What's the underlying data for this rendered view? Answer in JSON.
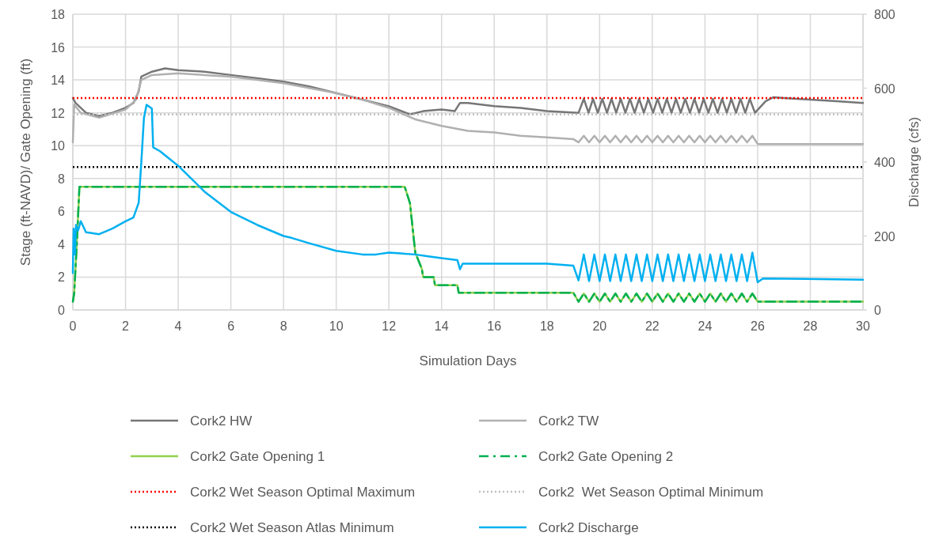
{
  "chart_data": {
    "type": "line",
    "xlabel": "Simulation Days",
    "ylabel": "Stage (ft-NAVD)/ Gate Opening (ft)",
    "y2label": "Discharge (cfs)",
    "xlim": [
      0,
      30
    ],
    "xticks": [
      0,
      2,
      4,
      6,
      8,
      10,
      12,
      14,
      16,
      18,
      20,
      22,
      24,
      26,
      28,
      30
    ],
    "ylim": [
      0,
      18
    ],
    "yticks": [
      0,
      2,
      4,
      6,
      8,
      10,
      12,
      14,
      16,
      18
    ],
    "y2lim": [
      0,
      800
    ],
    "y2ticks": [
      0,
      200,
      400,
      600,
      800
    ],
    "grid": true,
    "legend": "bottom",
    "series": [
      {
        "name": "Cork2 HW",
        "color": "#767676",
        "line_style": "solid",
        "x": [
          0,
          0.1,
          0.5,
          1,
          1.5,
          2,
          2.3,
          2.5,
          2.6,
          3,
          3.5,
          4,
          5,
          6,
          7,
          8,
          9,
          10,
          11,
          12,
          12.8,
          13.3,
          14,
          14.5,
          14.7,
          15,
          16,
          17,
          18,
          19.2,
          19.4,
          19.58,
          19.75,
          19.93,
          20.1,
          20.28,
          20.45,
          20.63,
          20.8,
          20.98,
          21.15,
          21.33,
          21.5,
          21.68,
          21.85,
          22.03,
          22.2,
          22.38,
          22.55,
          22.73,
          22.9,
          23.08,
          23.25,
          23.43,
          23.6,
          23.78,
          23.95,
          24.13,
          24.3,
          24.48,
          24.65,
          24.83,
          25.0,
          25.18,
          25.35,
          25.53,
          25.7,
          25.9,
          26.3,
          26.6,
          27,
          28,
          29,
          30
        ],
        "values": [
          12.9,
          12.6,
          12.0,
          11.8,
          12.0,
          12.3,
          12.6,
          13.3,
          14.2,
          14.5,
          14.7,
          14.6,
          14.5,
          14.3,
          14.1,
          13.9,
          13.6,
          13.2,
          12.8,
          12.4,
          11.9,
          12.1,
          12.2,
          12.1,
          12.6,
          12.6,
          12.4,
          12.3,
          12.1,
          12.0,
          12.85,
          12.0,
          12.85,
          12.0,
          12.85,
          12.0,
          12.85,
          12.0,
          12.85,
          12.0,
          12.85,
          12.0,
          12.85,
          12.0,
          12.85,
          12.0,
          12.85,
          12.0,
          12.85,
          12.0,
          12.85,
          12.0,
          12.85,
          12.0,
          12.85,
          12.0,
          12.85,
          12.0,
          12.85,
          12.0,
          12.85,
          12.0,
          12.85,
          12.0,
          12.85,
          12.0,
          12.85,
          12.0,
          12.7,
          12.95,
          12.9,
          12.8,
          12.7,
          12.6
        ]
      },
      {
        "name": "Cork2 TW",
        "color": "#b0b0b0",
        "line_style": "solid",
        "x": [
          0,
          0.05,
          0.3,
          1,
          2,
          2.4,
          2.6,
          3,
          4,
          5,
          6,
          7,
          8,
          9,
          10,
          11,
          12,
          13,
          14,
          15,
          16,
          17,
          18,
          19,
          19.2,
          19.4,
          19.6,
          19.8,
          20.0,
          20.2,
          20.4,
          20.6,
          20.8,
          21.0,
          21.2,
          21.4,
          21.6,
          21.8,
          22.0,
          22.2,
          22.4,
          22.6,
          22.8,
          23.0,
          23.2,
          23.4,
          23.6,
          23.8,
          24.0,
          24.2,
          24.4,
          24.6,
          24.8,
          25.0,
          25.2,
          25.4,
          25.6,
          25.8,
          26.0,
          30
        ],
        "values": [
          10.2,
          12.5,
          12.0,
          11.7,
          12.2,
          12.8,
          14.0,
          14.3,
          14.4,
          14.3,
          14.2,
          14.0,
          13.8,
          13.5,
          13.2,
          12.8,
          12.3,
          11.6,
          11.2,
          10.9,
          10.8,
          10.6,
          10.5,
          10.4,
          10.2,
          10.6,
          10.2,
          10.6,
          10.2,
          10.6,
          10.2,
          10.6,
          10.2,
          10.6,
          10.2,
          10.6,
          10.2,
          10.6,
          10.2,
          10.6,
          10.2,
          10.6,
          10.2,
          10.6,
          10.2,
          10.6,
          10.2,
          10.6,
          10.2,
          10.6,
          10.2,
          10.6,
          10.2,
          10.6,
          10.2,
          10.6,
          10.2,
          10.6,
          10.1,
          10.1
        ]
      },
      {
        "name": "Cork2 Gate Opening 1",
        "color": "#92d050",
        "line_style": "solid",
        "x": [
          0,
          0.05,
          0.15,
          0.25,
          12.6,
          12.8,
          13.0,
          13.25,
          13.3,
          13.7,
          13.75,
          14.6,
          14.65,
          19.0,
          19.2,
          19.4,
          19.6,
          19.8,
          20.0,
          20.2,
          20.4,
          20.6,
          20.8,
          21.0,
          21.2,
          21.4,
          21.6,
          21.8,
          22.0,
          22.2,
          22.4,
          22.6,
          22.8,
          23.0,
          23.2,
          23.4,
          23.6,
          23.8,
          24.0,
          24.2,
          24.4,
          24.6,
          24.8,
          25.0,
          25.2,
          25.4,
          25.6,
          25.8,
          26.0,
          30
        ],
        "values": [
          0.5,
          1.0,
          4.0,
          7.5,
          7.5,
          6.5,
          3.5,
          2.5,
          2.0,
          2.0,
          1.5,
          1.5,
          1.05,
          1.05,
          0.5,
          1.0,
          0.5,
          1.0,
          0.5,
          1.0,
          0.5,
          1.0,
          0.5,
          1.0,
          0.5,
          1.0,
          0.5,
          1.0,
          0.5,
          1.0,
          0.5,
          1.0,
          0.5,
          1.0,
          0.5,
          1.0,
          0.5,
          1.0,
          0.5,
          1.0,
          0.5,
          1.0,
          0.5,
          1.0,
          0.5,
          1.0,
          0.5,
          1.0,
          0.5,
          0.5
        ]
      },
      {
        "name": "Cork2 Gate Opening 2",
        "color": "#00b050",
        "line_style": "dashed",
        "x": [
          0,
          0.05,
          0.15,
          0.25,
          12.6,
          12.8,
          13.0,
          13.25,
          13.3,
          13.7,
          13.75,
          14.6,
          14.65,
          19.0,
          19.2,
          19.4,
          19.6,
          19.8,
          20.0,
          20.2,
          20.4,
          20.6,
          20.8,
          21.0,
          21.2,
          21.4,
          21.6,
          21.8,
          22.0,
          22.2,
          22.4,
          22.6,
          22.8,
          23.0,
          23.2,
          23.4,
          23.6,
          23.8,
          24.0,
          24.2,
          24.4,
          24.6,
          24.8,
          25.0,
          25.2,
          25.4,
          25.6,
          25.8,
          26.0,
          30
        ],
        "values": [
          0.5,
          1.0,
          4.0,
          7.5,
          7.5,
          6.5,
          3.5,
          2.5,
          2.0,
          2.0,
          1.5,
          1.5,
          1.05,
          1.05,
          0.5,
          1.0,
          0.5,
          1.0,
          0.5,
          1.0,
          0.5,
          1.0,
          0.5,
          1.0,
          0.5,
          1.0,
          0.5,
          1.0,
          0.5,
          1.0,
          0.5,
          1.0,
          0.5,
          1.0,
          0.5,
          1.0,
          0.5,
          1.0,
          0.5,
          1.0,
          0.5,
          1.0,
          0.5,
          1.0,
          0.5,
          1.0,
          0.5,
          1.0,
          0.5,
          0.5
        ]
      },
      {
        "name": "Cork2 Wet Season Optimal Maximum",
        "color": "#ff0000",
        "line_style": "dotted",
        "x": [
          0,
          30
        ],
        "values": [
          12.9,
          12.9
        ]
      },
      {
        "name": "Cork2  Wet Season Optimal Minimum",
        "color": "#bfbfbf",
        "line_style": "dotted",
        "x": [
          0,
          30
        ],
        "values": [
          11.9,
          11.9
        ]
      },
      {
        "name": "Cork2 Wet Season Atlas Minimum",
        "color": "#000000",
        "line_style": "dotted",
        "x": [
          0,
          30
        ],
        "values": [
          8.7,
          8.7
        ]
      },
      {
        "name": "Cork2 Discharge",
        "color": "#00b0f0",
        "line_style": "solid",
        "axis": "y2",
        "x": [
          0,
          0.03,
          0.08,
          0.12,
          0.2,
          0.3,
          0.5,
          1.0,
          1.5,
          2.0,
          2.3,
          2.5,
          2.6,
          2.7,
          2.8,
          3.0,
          3.05,
          3.3,
          4,
          5,
          6,
          7,
          8,
          8.3,
          9,
          10,
          11,
          11.5,
          12,
          13,
          13.5,
          14,
          14.6,
          14.7,
          14.8,
          16,
          18,
          19,
          19.2,
          19.4,
          19.6,
          19.8,
          20.0,
          20.2,
          20.4,
          20.6,
          20.8,
          21.0,
          21.2,
          21.4,
          21.6,
          21.8,
          22.0,
          22.2,
          22.4,
          22.6,
          22.8,
          23.0,
          23.2,
          23.4,
          23.6,
          23.8,
          24.0,
          24.2,
          24.4,
          24.6,
          24.8,
          25.0,
          25.2,
          25.4,
          25.6,
          25.8,
          26.0,
          26.2,
          30
        ],
        "values": [
          100,
          220,
          150,
          230,
          215,
          240,
          210,
          205,
          220,
          240,
          250,
          290,
          400,
          520,
          555,
          545,
          440,
          430,
          390,
          320,
          265,
          230,
          200,
          195,
          180,
          160,
          150,
          150,
          155,
          150,
          145,
          140,
          135,
          110,
          125,
          125,
          125,
          120,
          80,
          150,
          78,
          150,
          78,
          150,
          78,
          150,
          78,
          150,
          78,
          150,
          78,
          150,
          78,
          150,
          78,
          150,
          78,
          150,
          78,
          150,
          78,
          150,
          78,
          150,
          78,
          150,
          78,
          150,
          78,
          150,
          78,
          155,
          75,
          85,
          82
        ]
      }
    ]
  }
}
